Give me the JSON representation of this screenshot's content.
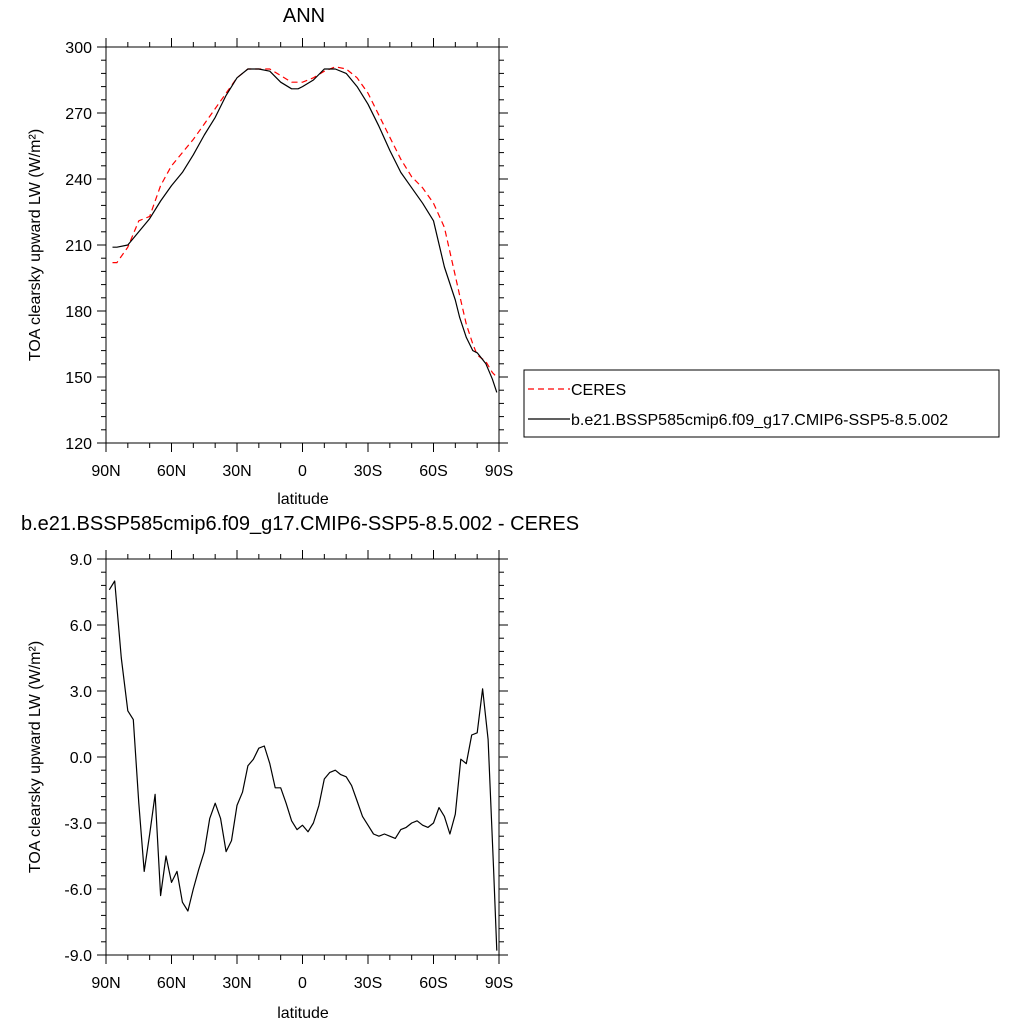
{
  "chart_data": [
    {
      "type": "line",
      "title": "ANN",
      "xlabel": "latitude",
      "ylabel": "TOA clearsky upward LW (W/m²)",
      "ylim": [
        120,
        300
      ],
      "yticks": [
        120,
        150,
        180,
        210,
        240,
        270,
        300
      ],
      "xlim": [
        90,
        -90
      ],
      "xticks": [
        90,
        60,
        30,
        0,
        -30,
        -60,
        -90
      ],
      "xtick_labels": [
        "90N",
        "60N",
        "30N",
        "0",
        "30S",
        "60S",
        "90S"
      ],
      "legend_position": "right",
      "series": [
        {
          "name": "CERES",
          "color": "#ff0000",
          "style": "dashed",
          "x": [
            87,
            85,
            80,
            75,
            70,
            65,
            60,
            55,
            50,
            45,
            40,
            35,
            30,
            25,
            20,
            15,
            10,
            5,
            0,
            -5,
            -10,
            -15,
            -20,
            -25,
            -30,
            -35,
            -40,
            -45,
            -50,
            -55,
            -60,
            -65,
            -70,
            -72,
            -75,
            -78,
            -80,
            -84,
            -87,
            -89
          ],
          "y": [
            202,
            202,
            209,
            221,
            223,
            237,
            246,
            252,
            258,
            265,
            272,
            279,
            286,
            290,
            290,
            290,
            287,
            284,
            284,
            286,
            289,
            291,
            290,
            286,
            279,
            269,
            259,
            249,
            241,
            236,
            229,
            218,
            196,
            187,
            174,
            165,
            160,
            157,
            152,
            150
          ]
        },
        {
          "name": "b.e21.BSSP585cmip6.f09_g17.CMIP6-SSP5-8.5.002",
          "color": "#000000",
          "style": "solid",
          "x": [
            87,
            85,
            80,
            75,
            70,
            65,
            60,
            55,
            50,
            45,
            40,
            35,
            30,
            25,
            20,
            15,
            10,
            5,
            2,
            0,
            -5,
            -10,
            -15,
            -20,
            -25,
            -30,
            -35,
            -40,
            -45,
            -50,
            -55,
            -60,
            -65,
            -70,
            -72,
            -75,
            -78,
            -80,
            -84,
            -87,
            -89
          ],
          "y": [
            209,
            209,
            210,
            216,
            222,
            230,
            237,
            243,
            251,
            260,
            268,
            278,
            286,
            290,
            290,
            289,
            284,
            281,
            281,
            282,
            285,
            290,
            290,
            288,
            282,
            274,
            264,
            253,
            243,
            236,
            229,
            221,
            200,
            185,
            177,
            168,
            162,
            161,
            156,
            149,
            143
          ]
        }
      ]
    },
    {
      "type": "line",
      "title": "b.e21.BSSP585cmip6.f09_g17.CMIP6-SSP5-8.5.002 - CERES",
      "xlabel": "latitude",
      "ylabel": "TOA clearsky upward LW (W/m²)",
      "ylim": [
        -9.0,
        9.0
      ],
      "yticks": [
        -9.0,
        -6.0,
        -3.0,
        0.0,
        3.0,
        6.0,
        9.0
      ],
      "xlim": [
        90,
        -90
      ],
      "xticks": [
        90,
        60,
        30,
        0,
        -30,
        -60,
        -90
      ],
      "xtick_labels": [
        "90N",
        "60N",
        "30N",
        "0",
        "30S",
        "60S",
        "90S"
      ],
      "series": [
        {
          "color": "#000000",
          "style": "solid",
          "x": [
            88.5,
            86,
            83,
            80,
            77.5,
            75,
            72.5,
            70,
            67.5,
            65,
            62.5,
            60,
            57.5,
            55,
            52.5,
            50,
            47.5,
            45,
            42.5,
            40,
            37.5,
            35,
            32.5,
            30,
            27.5,
            25,
            22.5,
            20,
            17.5,
            15,
            12.5,
            10,
            7.5,
            5,
            2.5,
            0,
            -2.5,
            -5,
            -7.5,
            -10,
            -12.5,
            -15,
            -17.5,
            -20,
            -22.5,
            -25,
            -27.5,
            -30,
            -32.5,
            -35,
            -37.5,
            -40,
            -42.5,
            -45,
            -47.5,
            -50,
            -52.5,
            -55,
            -57.5,
            -60,
            -62.5,
            -65,
            -67.5,
            -70,
            -72.5,
            -75,
            -77.5,
            -80,
            -82.5,
            -85,
            -87.5,
            -89
          ],
          "y": [
            7.6,
            8.0,
            4.5,
            2.1,
            1.7,
            -2.1,
            -5.2,
            -3.5,
            -1.7,
            -6.3,
            -4.5,
            -5.7,
            -5.2,
            -6.6,
            -7.0,
            -6.0,
            -5.1,
            -4.3,
            -2.8,
            -2.1,
            -2.8,
            -4.3,
            -3.8,
            -2.2,
            -1.6,
            -0.4,
            -0.1,
            0.4,
            0.5,
            -0.3,
            -1.4,
            -1.4,
            -2.1,
            -2.9,
            -3.3,
            -3.1,
            -3.4,
            -3.0,
            -2.2,
            -1.0,
            -0.7,
            -0.6,
            -0.8,
            -0.9,
            -1.3,
            -2.0,
            -2.7,
            -3.1,
            -3.5,
            -3.6,
            -3.5,
            -3.6,
            -3.7,
            -3.3,
            -3.2,
            -3.0,
            -2.9,
            -3.1,
            -3.2,
            -3.0,
            -2.3,
            -2.7,
            -3.5,
            -2.6,
            -0.1,
            -0.3,
            1.0,
            1.1,
            3.1,
            0.8,
            -5.0,
            -8.8
          ]
        }
      ]
    }
  ]
}
